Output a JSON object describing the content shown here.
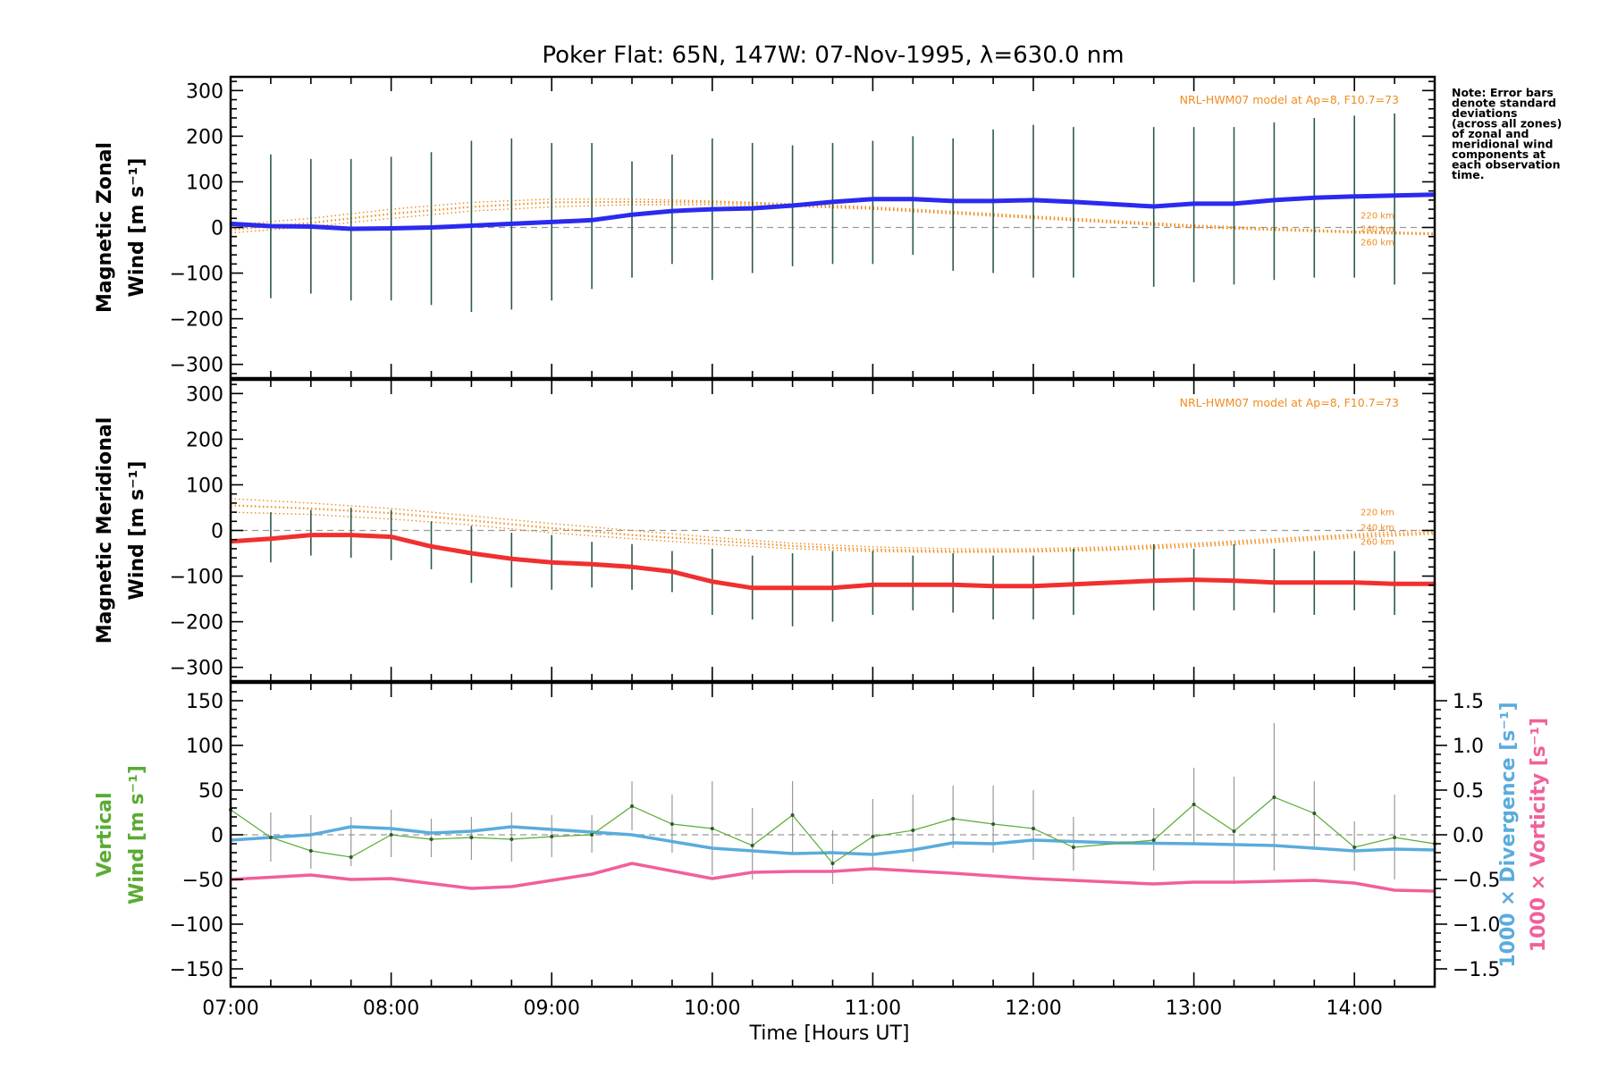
{
  "chart_data": {
    "type": "line",
    "title": "Poker Flat: 65N, 147W: 07-Nov-1995, λ=630.0 nm",
    "xlabel": "Time [Hours UT]",
    "x_ticks": [
      "07:00",
      "08:00",
      "09:00",
      "10:00",
      "11:00",
      "12:00",
      "13:00",
      "14:00"
    ],
    "x_range_hours": [
      7.0,
      14.5
    ],
    "note": [
      "Note: Error bars",
      "denote standard",
      "deviations",
      "(across all zones)",
      "of zonal and",
      "meridional wind",
      "components at",
      "each observation",
      "time."
    ],
    "colors": {
      "zonal": "#2a2af0",
      "meridional": "#f03030",
      "vertical": "#5aab32",
      "divergence": "#5aacdc",
      "vorticity": "#f0609a",
      "model": "#f08c1e",
      "errorbar": "#2e5a4a"
    },
    "panels": [
      {
        "id": "zonal",
        "ylabel_line1": "Magnetic Zonal",
        "ylabel_line2": "Wind [m s⁻¹]",
        "ylim": [
          -330,
          330
        ],
        "yticks": [
          "300",
          "200",
          "100",
          "0",
          "−100",
          "−200",
          "−300"
        ],
        "model_label": "NRL-HWM07 model at Ap=8, F10.7=73",
        "altitude_labels": [
          "220 km",
          "240 km",
          "260 km"
        ],
        "series": [
          {
            "name": "Zonal wind",
            "x": [
              7.0,
              7.25,
              7.5,
              7.75,
              8.0,
              8.25,
              8.5,
              8.75,
              9.0,
              9.25,
              9.5,
              9.75,
              10.0,
              10.25,
              10.5,
              10.75,
              11.0,
              11.25,
              11.5,
              11.75,
              12.0,
              12.25,
              12.75,
              13.0,
              13.25,
              13.5,
              13.75,
              14.0,
              14.25,
              14.5
            ],
            "y": [
              8,
              3,
              2,
              -3,
              -2,
              0,
              4,
              8,
              12,
              16,
              28,
              36,
              40,
              42,
              48,
              56,
              62,
              62,
              58,
              58,
              60,
              56,
              46,
              52,
              52,
              60,
              65,
              68,
              70,
              72
            ]
          }
        ],
        "error_bars": {
          "x": [
            7.25,
            7.5,
            7.75,
            8.0,
            8.25,
            8.5,
            8.75,
            9.0,
            9.25,
            9.5,
            9.75,
            10.0,
            10.25,
            10.5,
            10.75,
            11.0,
            11.25,
            11.5,
            11.75,
            12.0,
            12.25,
            12.75,
            13.0,
            13.25,
            13.5,
            13.75,
            14.0,
            14.25
          ],
          "low": [
            -155,
            -145,
            -160,
            -160,
            -170,
            -185,
            -180,
            -160,
            -135,
            -110,
            -80,
            -115,
            -100,
            -85,
            -80,
            -80,
            -60,
            -95,
            -100,
            -110,
            -110,
            -130,
            -120,
            -125,
            -115,
            -110,
            -110,
            -125
          ],
          "high": [
            160,
            150,
            150,
            155,
            165,
            190,
            195,
            185,
            185,
            145,
            160,
            195,
            185,
            180,
            185,
            190,
            200,
            195,
            215,
            225,
            220,
            220,
            220,
            220,
            230,
            240,
            245,
            250
          ]
        },
        "model": {
          "x": [
            7.0,
            7.5,
            8.0,
            8.5,
            9.0,
            9.5,
            10.0,
            10.5,
            11.0,
            11.5,
            12.0,
            12.5,
            13.0,
            13.5,
            14.0,
            14.5
          ],
          "lines": [
            [
              5,
              20,
              40,
              55,
              62,
              62,
              58,
              52,
              45,
              35,
              25,
              15,
              5,
              -2,
              -8,
              -12
            ],
            [
              -5,
              10,
              30,
              45,
              55,
              56,
              55,
              50,
              42,
              33,
              22,
              12,
              3,
              -4,
              -10,
              -14
            ],
            [
              -12,
              2,
              20,
              36,
              45,
              50,
              50,
              46,
              40,
              30,
              20,
              10,
              0,
              -6,
              -12,
              -16
            ]
          ]
        }
      },
      {
        "id": "meridional",
        "ylabel_line1": "Magnetic Meridional",
        "ylabel_line2": "Wind [m s⁻¹]",
        "ylim": [
          -330,
          330
        ],
        "yticks": [
          "300",
          "200",
          "100",
          "0",
          "−100",
          "−200",
          "−300"
        ],
        "model_label": "NRL-HWM07 model at Ap=8, F10.7=73",
        "altitude_labels": [
          "220 km",
          "240 km",
          "260 km"
        ],
        "series": [
          {
            "name": "Meridional wind",
            "x": [
              7.0,
              7.25,
              7.5,
              7.75,
              8.0,
              8.25,
              8.5,
              8.75,
              9.0,
              9.25,
              9.5,
              9.75,
              10.0,
              10.25,
              10.5,
              10.75,
              11.0,
              11.25,
              11.5,
              11.75,
              12.0,
              12.25,
              12.75,
              13.0,
              13.25,
              13.5,
              13.75,
              14.0,
              14.25,
              14.5
            ],
            "y": [
              -24,
              -18,
              -10,
              -10,
              -14,
              -35,
              -50,
              -62,
              -70,
              -74,
              -80,
              -90,
              -112,
              -126,
              -126,
              -126,
              -119,
              -119,
              -119,
              -122,
              -122,
              -118,
              -110,
              -108,
              -110,
              -114,
              -114,
              -114,
              -117,
              -117
            ]
          }
        ],
        "error_bars": {
          "x": [
            7.25,
            7.5,
            7.75,
            8.0,
            8.25,
            8.5,
            8.75,
            9.0,
            9.25,
            9.5,
            9.75,
            10.0,
            10.25,
            10.5,
            10.75,
            11.0,
            11.25,
            11.5,
            11.75,
            12.0,
            12.25,
            12.75,
            13.0,
            13.25,
            13.5,
            13.75,
            14.0,
            14.25
          ],
          "low": [
            -70,
            -55,
            -60,
            -65,
            -85,
            -115,
            -125,
            -130,
            -125,
            -130,
            -135,
            -185,
            -195,
            -210,
            -200,
            -185,
            -175,
            -180,
            -195,
            -195,
            -185,
            -175,
            -175,
            -175,
            -180,
            -185,
            -175,
            -185
          ],
          "high": [
            40,
            45,
            50,
            45,
            20,
            10,
            -5,
            -10,
            -25,
            -30,
            -45,
            -40,
            -55,
            -50,
            -45,
            -45,
            -55,
            -50,
            -55,
            -55,
            -40,
            -30,
            -40,
            -30,
            -40,
            -45,
            -45,
            -45
          ]
        },
        "model": {
          "x": [
            7.0,
            7.5,
            8.0,
            8.5,
            9.0,
            9.5,
            10.0,
            10.5,
            11.0,
            11.5,
            12.0,
            12.5,
            13.0,
            13.5,
            14.0,
            14.5
          ],
          "lines": [
            [
              70,
              60,
              48,
              32,
              15,
              0,
              -15,
              -28,
              -36,
              -40,
              -40,
              -36,
              -28,
              -18,
              -8,
              2
            ],
            [
              55,
              48,
              38,
              22,
              5,
              -10,
              -22,
              -34,
              -42,
              -45,
              -44,
              -40,
              -32,
              -22,
              -12,
              -4
            ],
            [
              40,
              35,
              25,
              12,
              -5,
              -18,
              -30,
              -40,
              -46,
              -48,
              -47,
              -43,
              -36,
              -26,
              -16,
              -8
            ]
          ]
        }
      },
      {
        "id": "vertical",
        "ylabel_line1": "Vertical",
        "ylabel_line2": "Wind [m s⁻¹]",
        "ylim": [
          -170,
          170
        ],
        "yticks": [
          "150",
          "100",
          "50",
          "0",
          "−50",
          "−100",
          "−150"
        ],
        "right_ylim": [
          -1.7,
          1.7
        ],
        "right_yticks": [
          "1.5",
          "1.0",
          "0.5",
          "0.0",
          "−0.5",
          "−1.0",
          "−1.5"
        ],
        "right_label_divergence": "1000 × Divergence [s⁻¹]",
        "right_label_vorticity": "1000 × Vorticity [s⁻¹]",
        "series": [
          {
            "name": "Vertical wind",
            "x": [
              7.0,
              7.25,
              7.5,
              7.75,
              8.0,
              8.25,
              8.5,
              8.75,
              9.0,
              9.25,
              9.5,
              9.75,
              10.0,
              10.25,
              10.5,
              10.75,
              11.0,
              11.25,
              11.5,
              11.75,
              12.0,
              12.25,
              12.75,
              13.0,
              13.25,
              13.5,
              13.75,
              14.0,
              14.25,
              14.5
            ],
            "y": [
              28,
              -3,
              -18,
              -25,
              0,
              -5,
              -3,
              -5,
              -2,
              0,
              32,
              12,
              7,
              -12,
              22,
              -32,
              -2,
              5,
              18,
              12,
              7,
              -14,
              -6,
              34,
              4,
              42,
              24,
              -14,
              -3,
              -10
            ]
          },
          {
            "name": "1000 x Divergence",
            "x": [
              7.0,
              7.5,
              7.75,
              8.0,
              8.25,
              8.5,
              8.75,
              9.0,
              9.5,
              10.0,
              10.5,
              10.75,
              11.0,
              11.25,
              11.5,
              11.75,
              12.0,
              12.5,
              13.0,
              13.5,
              14.0,
              14.25,
              14.5
            ],
            "y": [
              -0.06,
              0.0,
              0.09,
              0.07,
              0.02,
              0.04,
              0.09,
              0.06,
              0.0,
              -0.15,
              -0.21,
              -0.2,
              -0.22,
              -0.17,
              -0.09,
              -0.1,
              -0.06,
              -0.09,
              -0.1,
              -0.12,
              -0.18,
              -0.16,
              -0.17
            ]
          },
          {
            "name": "1000 x Vorticity",
            "x": [
              7.0,
              7.5,
              7.75,
              8.0,
              8.5,
              8.75,
              9.0,
              9.25,
              9.5,
              10.0,
              10.25,
              10.5,
              10.75,
              11.0,
              11.5,
              12.0,
              12.5,
              12.75,
              13.0,
              13.25,
              13.5,
              13.75,
              14.0,
              14.25,
              14.5
            ],
            "y": [
              -0.5,
              -0.45,
              -0.5,
              -0.49,
              -0.6,
              -0.58,
              -0.51,
              -0.44,
              -0.32,
              -0.49,
              -0.42,
              -0.41,
              -0.41,
              -0.38,
              -0.43,
              -0.49,
              -0.53,
              -0.55,
              -0.53,
              -0.53,
              -0.52,
              -0.51,
              -0.54,
              -0.62,
              -0.63
            ]
          }
        ],
        "error_bars": {
          "x": [
            7.0,
            7.25,
            7.5,
            7.75,
            8.0,
            8.25,
            8.5,
            8.75,
            9.0,
            9.25,
            9.5,
            9.75,
            10.0,
            10.25,
            10.5,
            10.75,
            11.0,
            11.25,
            11.5,
            11.75,
            12.0,
            12.25,
            12.75,
            13.0,
            13.25,
            13.5,
            13.75,
            14.0,
            14.25
          ],
          "low": [
            15,
            -30,
            -38,
            -35,
            -25,
            -25,
            -28,
            -30,
            -25,
            -20,
            5,
            -20,
            -45,
            -50,
            -20,
            -55,
            -40,
            -30,
            -15,
            -20,
            -28,
            -40,
            -40,
            -10,
            -55,
            -40,
            -15,
            -40,
            -50
          ],
          "high": [
            35,
            25,
            22,
            20,
            28,
            18,
            20,
            25,
            22,
            22,
            60,
            45,
            60,
            30,
            60,
            5,
            40,
            45,
            55,
            55,
            50,
            20,
            30,
            75,
            65,
            125,
            60,
            15,
            45
          ]
        }
      }
    ]
  }
}
